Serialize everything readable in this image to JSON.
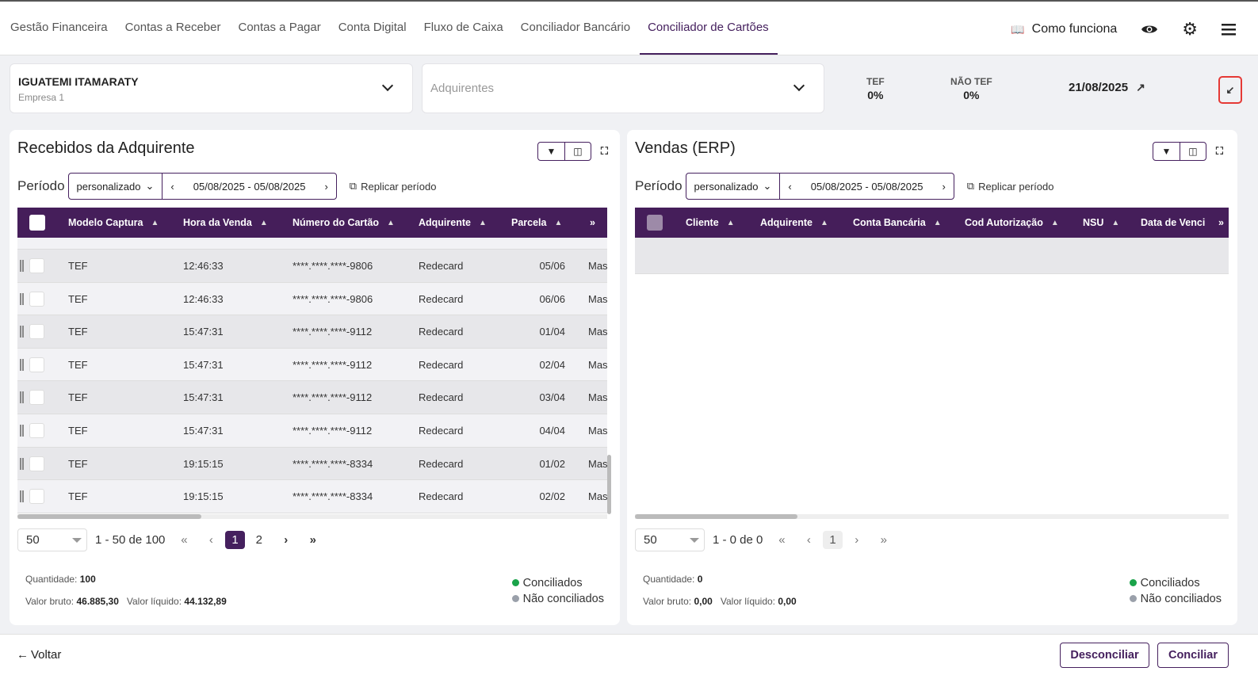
{
  "nav": {
    "items": [
      "Gestão Financeira",
      "Contas a Receber",
      "Contas a Pagar",
      "Conta Digital",
      "Fluxo de Caixa",
      "Conciliador Bancário",
      "Conciliador de Cartões"
    ],
    "active": "Conciliador de Cartões",
    "como_funciona": "Como funciona"
  },
  "filters": {
    "company_name": "IGUATEMI ITAMARATY",
    "company_sub": "Empresa 1",
    "acquirers_placeholder": "Adquirentes",
    "tef_label": "TEF",
    "tef_value": "0%",
    "nao_tef_label": "NÃO TEF",
    "nao_tef_value": "0%",
    "date": "21/08/2025"
  },
  "left": {
    "title": "Recebidos da Adquirente",
    "periodo_label": "Período",
    "periodo_type": "personalizado",
    "range": "05/08/2025 - 05/08/2025",
    "replicar": "Replicar período",
    "columns": [
      "Modelo Captura",
      "Hora da Venda",
      "Número do Cartão",
      "Adquirente",
      "Parcela",
      "»"
    ],
    "rows": [
      [
        "TEF",
        "12:46:33",
        "****.****.****-9806",
        "Redecard",
        "05/06",
        "Mas"
      ],
      [
        "TEF",
        "12:46:33",
        "****.****.****-9806",
        "Redecard",
        "06/06",
        "Mas"
      ],
      [
        "TEF",
        "15:47:31",
        "****.****.****-9112",
        "Redecard",
        "01/04",
        "Mas"
      ],
      [
        "TEF",
        "15:47:31",
        "****.****.****-9112",
        "Redecard",
        "02/04",
        "Mas"
      ],
      [
        "TEF",
        "15:47:31",
        "****.****.****-9112",
        "Redecard",
        "03/04",
        "Mas"
      ],
      [
        "TEF",
        "15:47:31",
        "****.****.****-9112",
        "Redecard",
        "04/04",
        "Mas"
      ],
      [
        "TEF",
        "19:15:15",
        "****.****.****-8334",
        "Redecard",
        "01/02",
        "Mas"
      ],
      [
        "TEF",
        "19:15:15",
        "****.****.****-8334",
        "Redecard",
        "02/02",
        "Mas"
      ]
    ],
    "page_size": "50",
    "range_text": "1 - 50 de 100",
    "pages": [
      "1",
      "2"
    ],
    "current_page": "1",
    "quantidade_label": "Quantidade:",
    "quantidade": "100",
    "bruto_label": "Valor bruto:",
    "bruto": "46.885,30",
    "liquido_label": "Valor líquido:",
    "liquido": "44.132,89",
    "legend": [
      "Conciliados",
      "Não conciliados"
    ]
  },
  "right": {
    "title": "Vendas (ERP)",
    "periodo_label": "Período",
    "periodo_type": "personalizado",
    "range": "05/08/2025 - 05/08/2025",
    "replicar": "Replicar período",
    "columns": [
      "Cliente",
      "Adquirente",
      "Conta Bancária",
      "Cod Autorização",
      "NSU",
      "Data de Venci",
      "»"
    ],
    "page_size": "50",
    "range_text": "1 - 0 de 0",
    "pages": [
      "1"
    ],
    "quantidade_label": "Quantidade:",
    "quantidade": "0",
    "bruto_label": "Valor bruto:",
    "bruto": "0,00",
    "liquido_label": "Valor líquido:",
    "liquido": "0,00",
    "legend": [
      "Conciliados",
      "Não conciliados"
    ]
  },
  "footer": {
    "voltar": "Voltar",
    "desconciliar": "Desconciliar",
    "conciliar": "Conciliar"
  },
  "colors": {
    "brand": "#451e5a",
    "conciliados": "#1aa34a",
    "nao_conciliados": "#9aa0aa",
    "highlight": "#e53935"
  }
}
